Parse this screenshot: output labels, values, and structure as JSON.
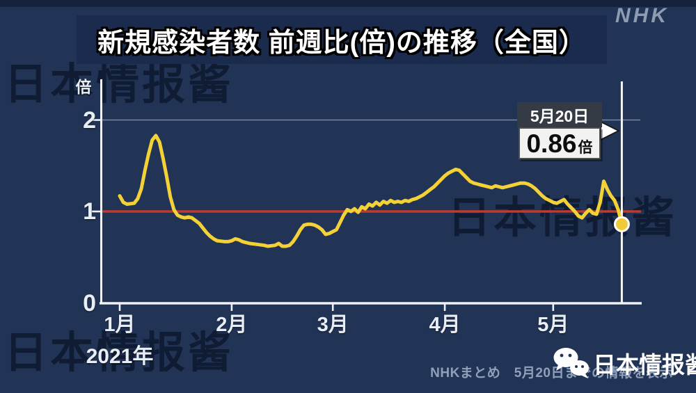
{
  "header": {
    "title": "新規感染者数 前週比(倍)の推移（全国）",
    "logo": "NHK"
  },
  "watermark": {
    "text": "日本情报酱"
  },
  "chart_data": {
    "type": "line",
    "title": "新規感染者数 前週比(倍)の推移（全国）",
    "ylabel_unit": "倍",
    "xlabel": "",
    "ylim": [
      0,
      2.45
    ],
    "y_ticks": [
      {
        "label": "2",
        "value": 2
      },
      {
        "label": "1",
        "value": 1
      },
      {
        "label": "0",
        "value": 0
      }
    ],
    "x_ticks": [
      {
        "label": "1月",
        "day": 0
      },
      {
        "label": "2月",
        "day": 31
      },
      {
        "label": "3月",
        "day": 59
      },
      {
        "label": "4月",
        "day": 90
      },
      {
        "label": "5月",
        "day": 120
      }
    ],
    "year_label": "2021年",
    "grid": "horizontal gridline at y=2 only",
    "baseline": {
      "value": 1,
      "color": "#c13a2e"
    },
    "line_color": "#f4d136",
    "series": [
      {
        "name": "新規感染者数 前週比(倍) 全国",
        "x_unit": "days since 2021-01-01",
        "points": [
          [
            0,
            1.17
          ],
          [
            1,
            1.1
          ],
          [
            2,
            1.08
          ],
          [
            4,
            1.09
          ],
          [
            5,
            1.14
          ],
          [
            6,
            1.25
          ],
          [
            7,
            1.45
          ],
          [
            8,
            1.63
          ],
          [
            9,
            1.78
          ],
          [
            10,
            1.83
          ],
          [
            11,
            1.76
          ],
          [
            12,
            1.58
          ],
          [
            13,
            1.38
          ],
          [
            14,
            1.16
          ],
          [
            15,
            1.02
          ],
          [
            16,
            0.96
          ],
          [
            17,
            0.94
          ],
          [
            18,
            0.93
          ],
          [
            19,
            0.94
          ],
          [
            20,
            0.93
          ],
          [
            21,
            0.9
          ],
          [
            22,
            0.87
          ],
          [
            23,
            0.82
          ],
          [
            24,
            0.77
          ],
          [
            25,
            0.73
          ],
          [
            26,
            0.7
          ],
          [
            27,
            0.68
          ],
          [
            28,
            0.675
          ],
          [
            29,
            0.67
          ],
          [
            30,
            0.67
          ],
          [
            31,
            0.68
          ],
          [
            32,
            0.7
          ],
          [
            33,
            0.69
          ],
          [
            34,
            0.67
          ],
          [
            35,
            0.66
          ],
          [
            36,
            0.65
          ],
          [
            38,
            0.64
          ],
          [
            40,
            0.63
          ],
          [
            41,
            0.62
          ],
          [
            43,
            0.63
          ],
          [
            44,
            0.65
          ],
          [
            45,
            0.62
          ],
          [
            46,
            0.62
          ],
          [
            47,
            0.63
          ],
          [
            48,
            0.67
          ],
          [
            49,
            0.73
          ],
          [
            50,
            0.8
          ],
          [
            51,
            0.85
          ],
          [
            52,
            0.86
          ],
          [
            53,
            0.86
          ],
          [
            54,
            0.85
          ],
          [
            55,
            0.83
          ],
          [
            56,
            0.8
          ],
          [
            57,
            0.75
          ],
          [
            58,
            0.76
          ],
          [
            59,
            0.78
          ],
          [
            60,
            0.8
          ],
          [
            61,
            0.88
          ],
          [
            62,
            0.96
          ],
          [
            63,
            1.02
          ],
          [
            64,
            1.0
          ],
          [
            65,
            1.03
          ],
          [
            66,
            0.99
          ],
          [
            67,
            1.05
          ],
          [
            68,
            1.03
          ],
          [
            69,
            1.08
          ],
          [
            70,
            1.06
          ],
          [
            71,
            1.1
          ],
          [
            72,
            1.07
          ],
          [
            73,
            1.11
          ],
          [
            74,
            1.09
          ],
          [
            75,
            1.12
          ],
          [
            76,
            1.1
          ],
          [
            77,
            1.11
          ],
          [
            78,
            1.1
          ],
          [
            79,
            1.12
          ],
          [
            80,
            1.11
          ],
          [
            81,
            1.13
          ],
          [
            82,
            1.14
          ],
          [
            83,
            1.16
          ],
          [
            84,
            1.18
          ],
          [
            85,
            1.21
          ],
          [
            86,
            1.24
          ],
          [
            87,
            1.27
          ],
          [
            88,
            1.31
          ],
          [
            89,
            1.35
          ],
          [
            90,
            1.39
          ],
          [
            91,
            1.42
          ],
          [
            92,
            1.44
          ],
          [
            93,
            1.46
          ],
          [
            94,
            1.45
          ],
          [
            95,
            1.41
          ],
          [
            96,
            1.37
          ],
          [
            97,
            1.33
          ],
          [
            98,
            1.31
          ],
          [
            99,
            1.3
          ],
          [
            100,
            1.29
          ],
          [
            101,
            1.28
          ],
          [
            102,
            1.27
          ],
          [
            103,
            1.26
          ],
          [
            104,
            1.28
          ],
          [
            105,
            1.27
          ],
          [
            106,
            1.26
          ],
          [
            107,
            1.27
          ],
          [
            108,
            1.28
          ],
          [
            109,
            1.29
          ],
          [
            110,
            1.3
          ],
          [
            111,
            1.31
          ],
          [
            112,
            1.31
          ],
          [
            113,
            1.3
          ],
          [
            114,
            1.28
          ],
          [
            115,
            1.25
          ],
          [
            116,
            1.21
          ],
          [
            117,
            1.17
          ],
          [
            118,
            1.14
          ],
          [
            119,
            1.12
          ],
          [
            120,
            1.1
          ],
          [
            121,
            1.09
          ],
          [
            122,
            1.11
          ],
          [
            123,
            1.13
          ],
          [
            124,
            1.08
          ],
          [
            125,
            1.04
          ],
          [
            126,
            1.0
          ],
          [
            127,
            0.95
          ],
          [
            128,
            0.93
          ],
          [
            129,
            0.98
          ],
          [
            130,
            1.02
          ],
          [
            131,
            0.98
          ],
          [
            132,
            0.97
          ],
          [
            133,
            1.1
          ],
          [
            134,
            1.33
          ],
          [
            135,
            1.24
          ],
          [
            136,
            1.17
          ],
          [
            137,
            1.12
          ],
          [
            138,
            1.02
          ],
          [
            139,
            0.86
          ]
        ]
      }
    ],
    "annotation": {
      "date_label": "5月20日",
      "value_label": "0.86",
      "unit": "倍",
      "day": 139,
      "value": 0.86
    }
  },
  "footer": {
    "note": "NHKまとめ　5月20日までの情報を表示",
    "credit": "日本情报酱",
    "credit_icon": "wechat-icon"
  },
  "colors": {
    "background": "#223456",
    "title_box": "#1b2b4e",
    "line": "#f4d136",
    "baseline_red": "#c13a2e",
    "axis": "#eef1f6",
    "callout_dark": "#343b45",
    "callout_light": "#f2f2f2",
    "note_text": "#8fa0bb",
    "nhk_logo": "#8e9bb1"
  }
}
